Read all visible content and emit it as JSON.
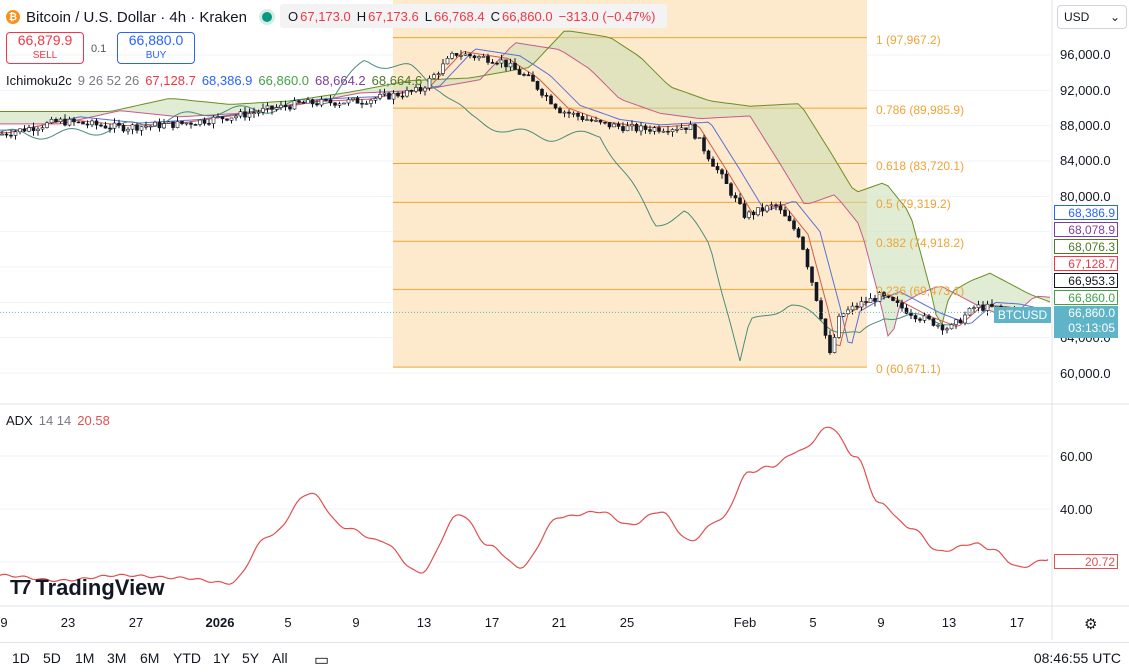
{
  "header": {
    "coin_icon": "bitcoin-icon",
    "coin_glyph": "₿",
    "title": "Bitcoin / U.S. Dollar · 4h · Kraken",
    "ohlc": {
      "o_label": "O",
      "o": "67,173.0",
      "h_label": "H",
      "h": "67,173.6",
      "l_label": "L",
      "l": "66,768.4",
      "c_label": "C",
      "c": "66,860.0",
      "change": "−313.0 (−0.47%)"
    }
  },
  "trade": {
    "sell_price": "66,879.9",
    "sell_label": "SELL",
    "spread": "0.1",
    "buy_price": "66,880.0",
    "buy_label": "BUY"
  },
  "currency": {
    "value": "USD",
    "icon": "chevron-down-icon"
  },
  "ichimoku": {
    "name": "Ichimoku2c",
    "params": "9 26 52 26",
    "v1": "67,128.7",
    "v2": "68,386.9",
    "v3": "66,860.0",
    "v4": "68,664.2",
    "v5": "68,664.6"
  },
  "adx": {
    "name": "ADX",
    "params": "14 14",
    "value": "20.58",
    "last_tag": "20.72"
  },
  "price_axis": [
    "96,000.0",
    "92,000.0",
    "88,000.0",
    "84,000.0",
    "80,000.0",
    "64,000.0",
    "60,000.0"
  ],
  "adx_axis": [
    "60.00",
    "40.00"
  ],
  "tags": [
    "68,386.9",
    "68,078.9",
    "68,076.3",
    "67,128.7",
    "66,953.3",
    "66,860.0"
  ],
  "last": {
    "symbol": "BTCUSD",
    "price": "66,860.0",
    "countdown": "03:13:05"
  },
  "fib": [
    {
      "label": "1 (97,967.2)",
      "price": 97967.2
    },
    {
      "label": "0.786 (89,985.9)",
      "price": 89985.9
    },
    {
      "label": "0.618 (83,720.1)",
      "price": 83720.1
    },
    {
      "label": "0.5 (79,319.2)",
      "price": 79319.2
    },
    {
      "label": "0.382 (74,918.2)",
      "price": 74918.2
    },
    {
      "label": "0.236 (69,473.1)",
      "price": 69473.1
    },
    {
      "label": "0 (60,671.1)",
      "price": 60671.1
    }
  ],
  "x_axis": [
    "9",
    "23",
    "27",
    "2026",
    "5",
    "9",
    "13",
    "17",
    "21",
    "25",
    "Feb",
    "5",
    "9",
    "13",
    "17"
  ],
  "timeframes": [
    "1D",
    "5D",
    "1M",
    "3M",
    "6M",
    "YTD",
    "1Y",
    "5Y",
    "All"
  ],
  "clock": "08:46:55 UTC",
  "logo": "TradingView",
  "colors": {
    "up": "#089981",
    "down": "#f23645",
    "fib": "#f0a336",
    "adx": "#e05050",
    "accent": "#2962ff",
    "last": "#5fb4c8"
  },
  "chart_data": {
    "type": "candlestick",
    "symbol": "BTCUSD",
    "interval": "4h",
    "ylim": [
      58000,
      100000
    ],
    "close_trend": [
      [
        0,
        87000
      ],
      [
        60,
        88500
      ],
      [
        120,
        87800
      ],
      [
        180,
        88200
      ],
      [
        240,
        89200
      ],
      [
        300,
        90500
      ],
      [
        360,
        90800
      ],
      [
        420,
        92000
      ],
      [
        455,
        96200
      ],
      [
        500,
        95400
      ],
      [
        530,
        93200
      ],
      [
        560,
        89800
      ],
      [
        600,
        88200
      ],
      [
        640,
        87600
      ],
      [
        690,
        87900
      ],
      [
        720,
        82500
      ],
      [
        745,
        77800
      ],
      [
        775,
        79000
      ],
      [
        800,
        75500
      ],
      [
        820,
        67000
      ],
      [
        830,
        62000
      ],
      [
        840,
        66500
      ],
      [
        860,
        67800
      ],
      [
        880,
        68700
      ],
      [
        920,
        66300
      ],
      [
        950,
        65000
      ],
      [
        975,
        67500
      ],
      [
        1000,
        67300
      ],
      [
        1020,
        66800
      ],
      [
        1048,
        66860
      ]
    ],
    "adx_series": [
      [
        0,
        15
      ],
      [
        60,
        13
      ],
      [
        120,
        15
      ],
      [
        180,
        14
      ],
      [
        230,
        12
      ],
      [
        270,
        30
      ],
      [
        310,
        46
      ],
      [
        345,
        33
      ],
      [
        380,
        28
      ],
      [
        420,
        16
      ],
      [
        460,
        38
      ],
      [
        490,
        26
      ],
      [
        520,
        18
      ],
      [
        560,
        37
      ],
      [
        600,
        39
      ],
      [
        630,
        34
      ],
      [
        660,
        39
      ],
      [
        690,
        28
      ],
      [
        720,
        36
      ],
      [
        750,
        54
      ],
      [
        770,
        56
      ],
      [
        800,
        62
      ],
      [
        830,
        71
      ],
      [
        855,
        60
      ],
      [
        880,
        42
      ],
      [
        910,
        33
      ],
      [
        940,
        24
      ],
      [
        975,
        27
      ],
      [
        990,
        25
      ],
      [
        1020,
        18
      ],
      [
        1048,
        21
      ]
    ]
  }
}
